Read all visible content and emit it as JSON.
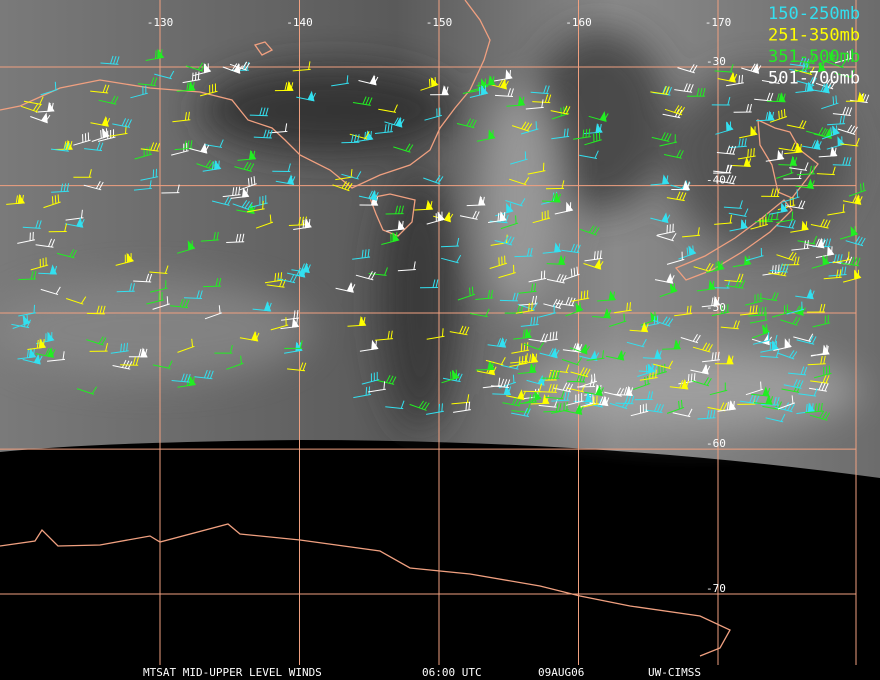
{
  "map": {
    "longitude_labels": [
      "-130",
      "-140",
      "-150",
      "-160",
      "-170"
    ],
    "longitudes": [
      -130,
      -140,
      -150,
      -160,
      -170
    ],
    "latitude_labels": [
      "-30",
      "-40",
      "-50",
      "-60",
      "-70"
    ],
    "latitudes": [
      -30,
      -40,
      -50,
      -60,
      -70
    ],
    "legend": [
      {
        "label": "150-250mb",
        "color": "#33e0f0"
      },
      {
        "label": "251-350mb",
        "color": "#ffff00"
      },
      {
        "label": "351-500mb",
        "color": "#22ee22"
      },
      {
        "label": "501-700mb",
        "color": "#ffffff"
      }
    ],
    "footer": [
      "MTSAT MID-UPPER LEVEL WINDS",
      "06:00 UTC",
      "09AUG06",
      "UW-CIMSS"
    ]
  }
}
